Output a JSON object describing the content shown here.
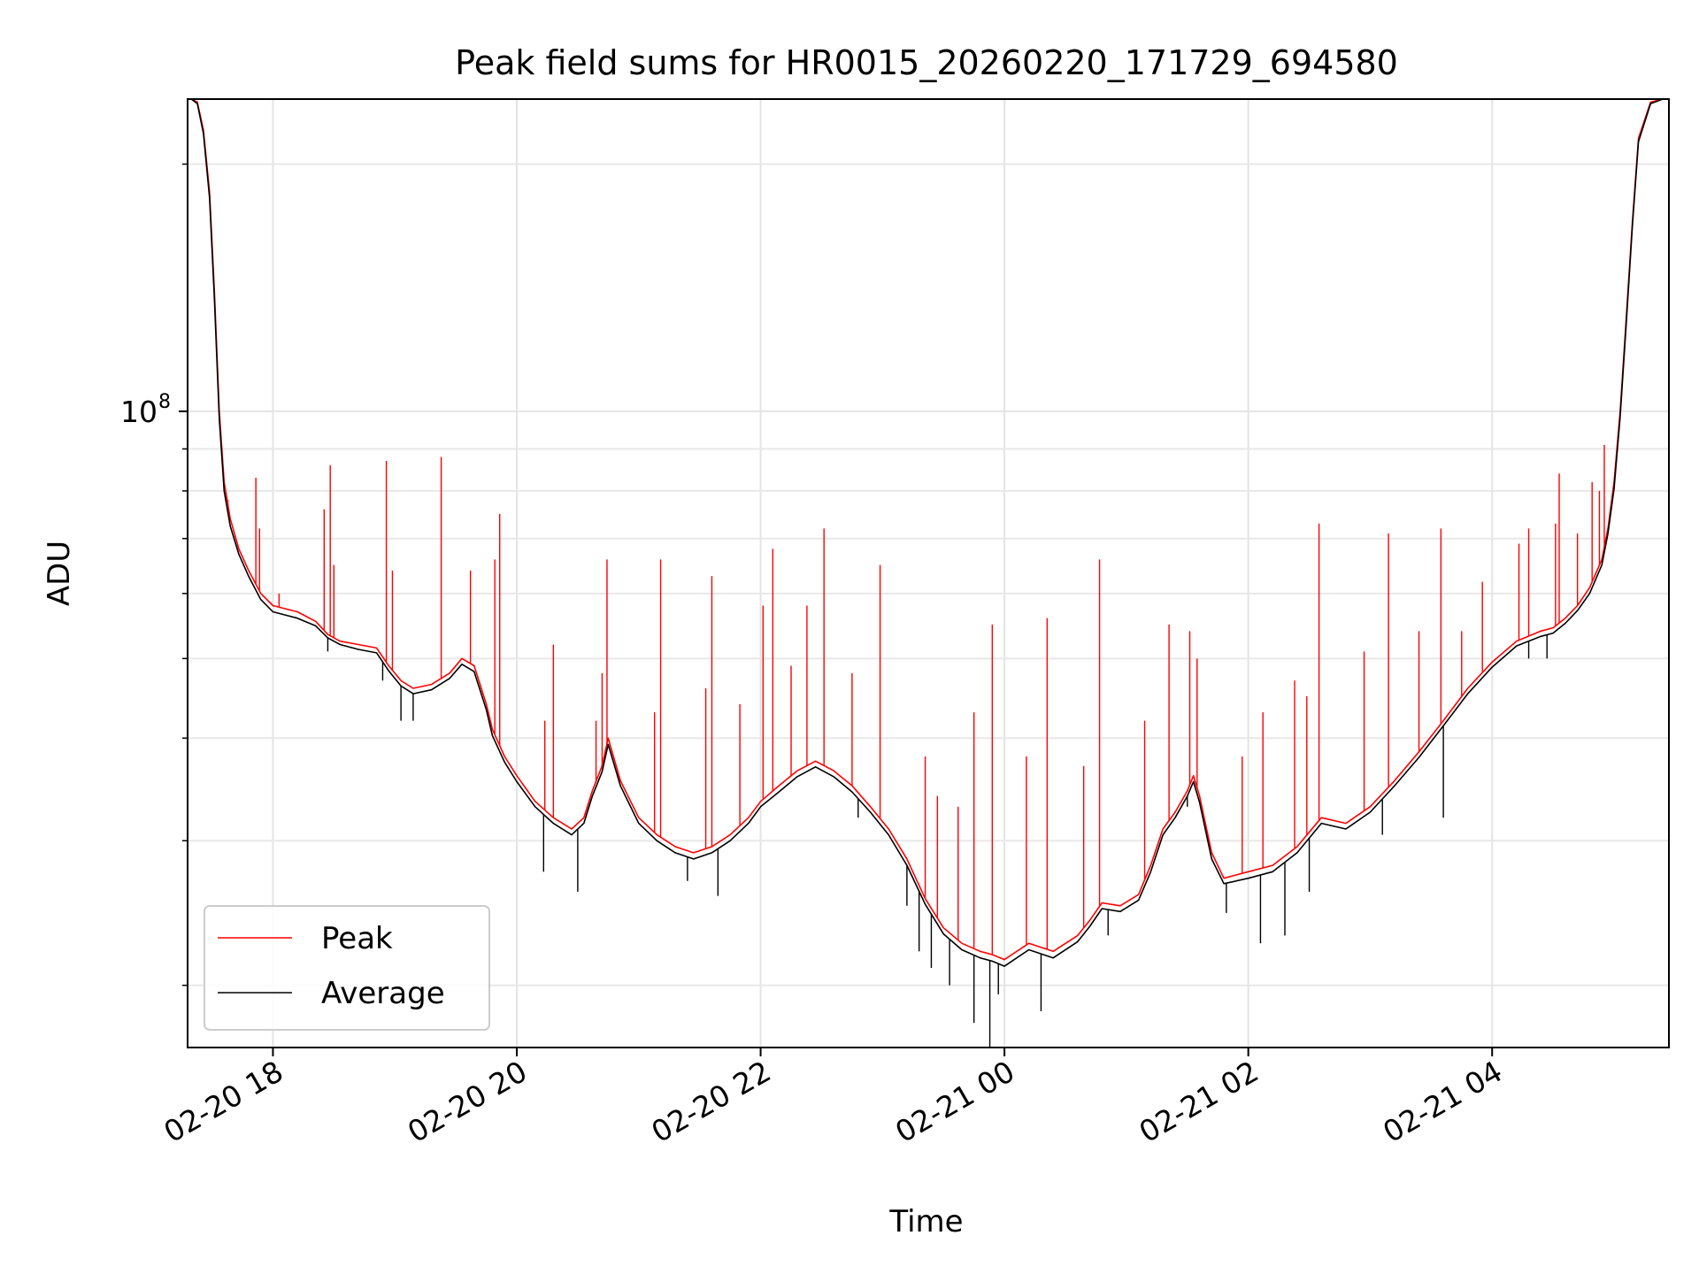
{
  "chart_data": {
    "type": "line",
    "title": "Peak field sums for HR0015_20260220_171729_694580",
    "xlabel": "Time",
    "ylabel": "ADU",
    "yscale": "log",
    "xlim": [
      17.3,
      29.45
    ],
    "ylim": [
      16800000,
      240000000
    ],
    "x_unit": "hours since 2026-02-20 00:00",
    "x_ticks": [
      {
        "value": 18,
        "label": "02-20 18"
      },
      {
        "value": 20,
        "label": "02-20 20"
      },
      {
        "value": 22,
        "label": "02-20 22"
      },
      {
        "value": 24,
        "label": "02-21 00"
      },
      {
        "value": 26,
        "label": "02-21 02"
      },
      {
        "value": 28,
        "label": "02-21 04"
      }
    ],
    "y_major_ticks": [
      {
        "value": 100000000,
        "base": "10",
        "exp": "8"
      }
    ],
    "y_minor_ticks": [
      20000000,
      30000000,
      40000000,
      50000000,
      60000000,
      70000000,
      80000000,
      90000000,
      200000000
    ],
    "grid": true,
    "legend_position": "lower-left",
    "series": [
      {
        "name": "Peak",
        "color": "#ff0000",
        "x": [
          17.33,
          17.38,
          17.43,
          17.48,
          17.52,
          17.56,
          17.6,
          17.65,
          17.72,
          17.8,
          17.9,
          18.0,
          18.1,
          18.2,
          18.35,
          18.45,
          18.55,
          18.7,
          18.85,
          18.95,
          19.05,
          19.15,
          19.3,
          19.45,
          19.55,
          19.65,
          19.75,
          19.8,
          19.9,
          20.0,
          20.15,
          20.3,
          20.45,
          20.55,
          20.62,
          20.7,
          20.75,
          20.85,
          21.0,
          21.15,
          21.3,
          21.45,
          21.6,
          21.75,
          21.9,
          22.0,
          22.15,
          22.3,
          22.45,
          22.6,
          22.75,
          22.9,
          23.05,
          23.2,
          23.35,
          23.5,
          23.65,
          23.8,
          23.9,
          24.0,
          24.2,
          24.4,
          24.6,
          24.7,
          24.8,
          24.95,
          25.1,
          25.2,
          25.3,
          25.4,
          25.5,
          25.55,
          25.6,
          25.7,
          25.8,
          26.0,
          26.2,
          26.4,
          26.6,
          26.8,
          27.0,
          27.2,
          27.4,
          27.6,
          27.8,
          28.0,
          28.2,
          28.4,
          28.5,
          28.6,
          28.7,
          28.8,
          28.9,
          28.95,
          29.0,
          29.05,
          29.1,
          29.15,
          29.2,
          29.3,
          29.4
        ],
        "y": [
          240000000,
          238000000,
          220000000,
          185000000,
          140000000,
          100000000,
          82000000,
          74000000,
          68000000,
          64000000,
          60000000,
          58000000,
          57500000,
          57000000,
          55500000,
          53500000,
          52500000,
          52000000,
          51500000,
          49000000,
          47000000,
          46000000,
          46500000,
          48000000,
          50000000,
          49000000,
          44000000,
          41000000,
          38000000,
          36000000,
          33500000,
          32000000,
          31000000,
          32000000,
          34500000,
          37000000,
          40000000,
          35500000,
          32000000,
          30500000,
          29500000,
          29000000,
          29500000,
          30500000,
          32000000,
          33500000,
          35000000,
          36500000,
          37500000,
          36500000,
          35000000,
          33000000,
          31000000,
          28500000,
          25500000,
          23500000,
          22500000,
          22000000,
          21800000,
          21500000,
          22500000,
          22000000,
          23000000,
          24000000,
          25200000,
          25000000,
          25800000,
          28000000,
          31000000,
          32500000,
          34500000,
          36000000,
          34000000,
          29000000,
          27000000,
          27500000,
          28000000,
          29500000,
          32000000,
          31500000,
          33000000,
          35500000,
          38500000,
          42000000,
          46000000,
          49500000,
          52500000,
          54000000,
          54500000,
          56000000,
          58000000,
          61000000,
          66000000,
          72000000,
          82000000,
          100000000,
          130000000,
          170000000,
          215000000,
          238000000,
          240000000
        ]
      },
      {
        "name": "Average",
        "color": "#000000",
        "x": [
          17.33,
          17.38,
          17.43,
          17.48,
          17.52,
          17.56,
          17.6,
          17.65,
          17.72,
          17.8,
          17.9,
          18.0,
          18.1,
          18.2,
          18.35,
          18.45,
          18.55,
          18.7,
          18.85,
          18.95,
          19.05,
          19.15,
          19.3,
          19.45,
          19.55,
          19.65,
          19.75,
          19.8,
          19.9,
          20.0,
          20.15,
          20.3,
          20.45,
          20.55,
          20.62,
          20.7,
          20.75,
          20.85,
          21.0,
          21.15,
          21.3,
          21.45,
          21.6,
          21.75,
          21.9,
          22.0,
          22.15,
          22.3,
          22.45,
          22.6,
          22.75,
          22.9,
          23.05,
          23.2,
          23.35,
          23.5,
          23.65,
          23.8,
          23.9,
          24.0,
          24.2,
          24.4,
          24.6,
          24.7,
          24.8,
          24.95,
          25.1,
          25.2,
          25.3,
          25.4,
          25.5,
          25.55,
          25.6,
          25.7,
          25.8,
          26.0,
          26.2,
          26.4,
          26.6,
          26.8,
          27.0,
          27.2,
          27.4,
          27.6,
          27.8,
          28.0,
          28.2,
          28.4,
          28.5,
          28.6,
          28.7,
          28.8,
          28.9,
          28.95,
          29.0,
          29.05,
          29.1,
          29.15,
          29.2,
          29.3,
          29.4
        ],
        "y": [
          240000000,
          237000000,
          218000000,
          182000000,
          137000000,
          98000000,
          80000000,
          72500000,
          67000000,
          63000000,
          59000000,
          57000000,
          56500000,
          56000000,
          54800000,
          53000000,
          52000000,
          51300000,
          50800000,
          48300000,
          46300000,
          45300000,
          45800000,
          47300000,
          49200000,
          48200000,
          43300000,
          40300000,
          37400000,
          35400000,
          33000000,
          31500000,
          30500000,
          31500000,
          34000000,
          36400000,
          39300000,
          35000000,
          31500000,
          30000000,
          29000000,
          28500000,
          29000000,
          30000000,
          31500000,
          33000000,
          34400000,
          35900000,
          36900000,
          35900000,
          34400000,
          32500000,
          30500000,
          28000000,
          25100000,
          23100000,
          22100000,
          21600000,
          21400000,
          21100000,
          22100000,
          21600000,
          22600000,
          23600000,
          24800000,
          24600000,
          25400000,
          27500000,
          30500000,
          32000000,
          34000000,
          35400000,
          33400000,
          28500000,
          26600000,
          27000000,
          27500000,
          29000000,
          31500000,
          31000000,
          32500000,
          35000000,
          37900000,
          41400000,
          45300000,
          48800000,
          51800000,
          53200000,
          53700000,
          55200000,
          57200000,
          60000000,
          65000000,
          71000000,
          80500000,
          98500000,
          128000000,
          168000000,
          213000000,
          237000000,
          240000000
        ]
      }
    ],
    "peak_spikes": [
      {
        "x": 17.63,
        "y": 78000000
      },
      {
        "x": 17.86,
        "y": 83000000
      },
      {
        "x": 17.89,
        "y": 72000000
      },
      {
        "x": 18.05,
        "y": 60000000
      },
      {
        "x": 18.42,
        "y": 76000000
      },
      {
        "x": 18.47,
        "y": 86000000
      },
      {
        "x": 18.5,
        "y": 65000000
      },
      {
        "x": 18.93,
        "y": 87000000
      },
      {
        "x": 18.98,
        "y": 64000000
      },
      {
        "x": 19.38,
        "y": 88000000
      },
      {
        "x": 19.62,
        "y": 64000000
      },
      {
        "x": 19.82,
        "y": 66000000
      },
      {
        "x": 19.86,
        "y": 75000000
      },
      {
        "x": 20.23,
        "y": 42000000
      },
      {
        "x": 20.3,
        "y": 52000000
      },
      {
        "x": 20.65,
        "y": 42000000
      },
      {
        "x": 20.7,
        "y": 48000000
      },
      {
        "x": 20.74,
        "y": 66000000
      },
      {
        "x": 21.13,
        "y": 43000000
      },
      {
        "x": 21.18,
        "y": 66000000
      },
      {
        "x": 21.55,
        "y": 46000000
      },
      {
        "x": 21.6,
        "y": 63000000
      },
      {
        "x": 21.83,
        "y": 44000000
      },
      {
        "x": 22.02,
        "y": 58000000
      },
      {
        "x": 22.1,
        "y": 68000000
      },
      {
        "x": 22.25,
        "y": 49000000
      },
      {
        "x": 22.38,
        "y": 58000000
      },
      {
        "x": 22.52,
        "y": 72000000
      },
      {
        "x": 22.75,
        "y": 48000000
      },
      {
        "x": 22.98,
        "y": 65000000
      },
      {
        "x": 23.35,
        "y": 38000000
      },
      {
        "x": 23.45,
        "y": 34000000
      },
      {
        "x": 23.62,
        "y": 33000000
      },
      {
        "x": 23.75,
        "y": 43000000
      },
      {
        "x": 23.9,
        "y": 55000000
      },
      {
        "x": 24.18,
        "y": 38000000
      },
      {
        "x": 24.35,
        "y": 56000000
      },
      {
        "x": 24.65,
        "y": 37000000
      },
      {
        "x": 24.78,
        "y": 66000000
      },
      {
        "x": 25.15,
        "y": 42000000
      },
      {
        "x": 25.35,
        "y": 55000000
      },
      {
        "x": 25.52,
        "y": 54000000
      },
      {
        "x": 25.58,
        "y": 50000000
      },
      {
        "x": 25.95,
        "y": 38000000
      },
      {
        "x": 26.12,
        "y": 43000000
      },
      {
        "x": 26.38,
        "y": 47000000
      },
      {
        "x": 26.48,
        "y": 45000000
      },
      {
        "x": 26.58,
        "y": 73000000
      },
      {
        "x": 26.95,
        "y": 51000000
      },
      {
        "x": 27.15,
        "y": 71000000
      },
      {
        "x": 27.4,
        "y": 54000000
      },
      {
        "x": 27.58,
        "y": 72000000
      },
      {
        "x": 27.75,
        "y": 54000000
      },
      {
        "x": 27.92,
        "y": 62000000
      },
      {
        "x": 28.22,
        "y": 69000000
      },
      {
        "x": 28.3,
        "y": 72000000
      },
      {
        "x": 28.52,
        "y": 73000000
      },
      {
        "x": 28.55,
        "y": 84000000
      },
      {
        "x": 28.7,
        "y": 71000000
      },
      {
        "x": 28.82,
        "y": 82000000
      },
      {
        "x": 28.88,
        "y": 80000000
      },
      {
        "x": 28.92,
        "y": 91000000
      }
    ],
    "average_dips": [
      {
        "x": 18.45,
        "y": 51000000
      },
      {
        "x": 18.9,
        "y": 47000000
      },
      {
        "x": 19.05,
        "y": 42000000
      },
      {
        "x": 19.15,
        "y": 42000000
      },
      {
        "x": 20.22,
        "y": 27500000
      },
      {
        "x": 20.5,
        "y": 26000000
      },
      {
        "x": 21.4,
        "y": 26800000
      },
      {
        "x": 21.65,
        "y": 25700000
      },
      {
        "x": 22.8,
        "y": 32000000
      },
      {
        "x": 23.2,
        "y": 25000000
      },
      {
        "x": 23.3,
        "y": 22000000
      },
      {
        "x": 23.4,
        "y": 21000000
      },
      {
        "x": 23.55,
        "y": 20000000
      },
      {
        "x": 23.75,
        "y": 18000000
      },
      {
        "x": 23.88,
        "y": 16800000
      },
      {
        "x": 23.95,
        "y": 19500000
      },
      {
        "x": 24.3,
        "y": 18600000
      },
      {
        "x": 24.85,
        "y": 23000000
      },
      {
        "x": 25.5,
        "y": 33000000
      },
      {
        "x": 25.82,
        "y": 24500000
      },
      {
        "x": 26.1,
        "y": 22500000
      },
      {
        "x": 26.3,
        "y": 23000000
      },
      {
        "x": 26.5,
        "y": 26000000
      },
      {
        "x": 27.1,
        "y": 30500000
      },
      {
        "x": 27.6,
        "y": 32000000
      },
      {
        "x": 28.3,
        "y": 50000000
      },
      {
        "x": 28.45,
        "y": 50000000
      }
    ]
  }
}
